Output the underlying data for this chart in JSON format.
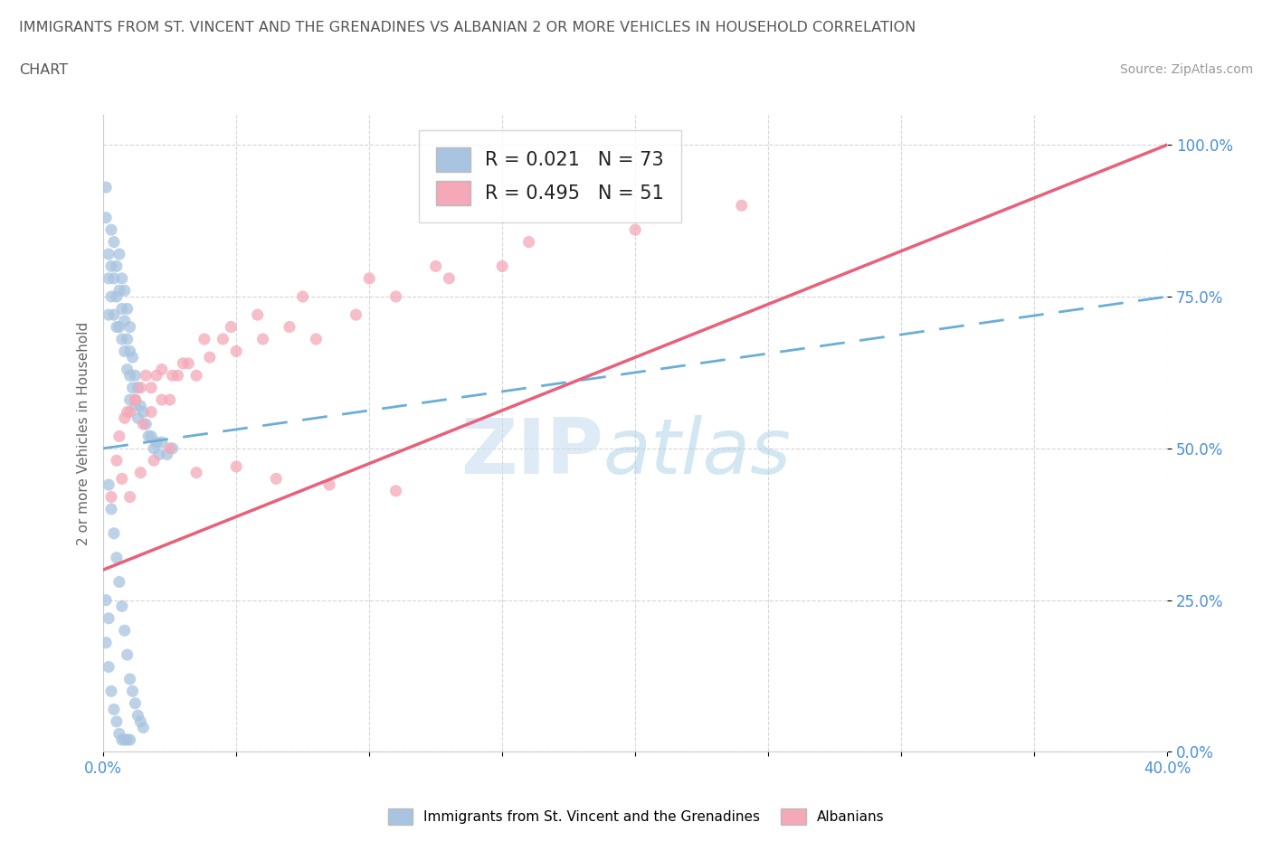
{
  "title_line1": "IMMIGRANTS FROM ST. VINCENT AND THE GRENADINES VS ALBANIAN 2 OR MORE VEHICLES IN HOUSEHOLD CORRELATION",
  "title_line2": "CHART",
  "source_text": "Source: ZipAtlas.com",
  "ylabel": "2 or more Vehicles in Household",
  "xlim": [
    0.0,
    0.4
  ],
  "ylim": [
    0.0,
    1.05
  ],
  "y_ticks": [
    0.0,
    0.25,
    0.5,
    0.75,
    1.0
  ],
  "y_tick_labels": [
    "0.0%",
    "25.0%",
    "50.0%",
    "75.0%",
    "100.0%"
  ],
  "x_tick_labels_show": [
    "0.0%",
    "40.0%"
  ],
  "blue_R": 0.021,
  "blue_N": 73,
  "pink_R": 0.495,
  "pink_N": 51,
  "blue_color": "#a8c4e0",
  "pink_color": "#f4a8b8",
  "blue_line_color": "#6aaed6",
  "pink_line_color": "#e8607a",
  "legend_label_blue": "Immigrants from St. Vincent and the Grenadines",
  "legend_label_pink": "Albanians",
  "watermark_zip": "ZIP",
  "watermark_atlas": "atlas",
  "blue_scatter_x": [
    0.001,
    0.001,
    0.002,
    0.002,
    0.002,
    0.003,
    0.003,
    0.003,
    0.004,
    0.004,
    0.004,
    0.005,
    0.005,
    0.005,
    0.006,
    0.006,
    0.006,
    0.007,
    0.007,
    0.007,
    0.008,
    0.008,
    0.008,
    0.009,
    0.009,
    0.009,
    0.01,
    0.01,
    0.01,
    0.01,
    0.011,
    0.011,
    0.012,
    0.012,
    0.013,
    0.013,
    0.014,
    0.015,
    0.016,
    0.017,
    0.018,
    0.019,
    0.02,
    0.021,
    0.022,
    0.024,
    0.026,
    0.002,
    0.003,
    0.004,
    0.005,
    0.006,
    0.007,
    0.008,
    0.009,
    0.01,
    0.011,
    0.012,
    0.013,
    0.014,
    0.015,
    0.001,
    0.002,
    0.003,
    0.004,
    0.005,
    0.006,
    0.007,
    0.008,
    0.009,
    0.01,
    0.001,
    0.002
  ],
  "blue_scatter_y": [
    0.93,
    0.88,
    0.82,
    0.78,
    0.72,
    0.86,
    0.8,
    0.75,
    0.84,
    0.78,
    0.72,
    0.8,
    0.75,
    0.7,
    0.82,
    0.76,
    0.7,
    0.78,
    0.73,
    0.68,
    0.76,
    0.71,
    0.66,
    0.73,
    0.68,
    0.63,
    0.7,
    0.66,
    0.62,
    0.58,
    0.65,
    0.6,
    0.62,
    0.57,
    0.6,
    0.55,
    0.57,
    0.56,
    0.54,
    0.52,
    0.52,
    0.5,
    0.51,
    0.49,
    0.51,
    0.49,
    0.5,
    0.44,
    0.4,
    0.36,
    0.32,
    0.28,
    0.24,
    0.2,
    0.16,
    0.12,
    0.1,
    0.08,
    0.06,
    0.05,
    0.04,
    0.18,
    0.14,
    0.1,
    0.07,
    0.05,
    0.03,
    0.02,
    0.02,
    0.02,
    0.02,
    0.25,
    0.22
  ],
  "pink_scatter_x": [
    0.003,
    0.005,
    0.008,
    0.01,
    0.012,
    0.014,
    0.016,
    0.018,
    0.02,
    0.022,
    0.025,
    0.028,
    0.03,
    0.035,
    0.04,
    0.045,
    0.05,
    0.06,
    0.07,
    0.08,
    0.095,
    0.11,
    0.13,
    0.15,
    0.2,
    0.24,
    0.006,
    0.009,
    0.012,
    0.015,
    0.018,
    0.022,
    0.026,
    0.032,
    0.038,
    0.048,
    0.058,
    0.075,
    0.1,
    0.125,
    0.16,
    0.007,
    0.01,
    0.014,
    0.019,
    0.025,
    0.035,
    0.05,
    0.065,
    0.085,
    0.11
  ],
  "pink_scatter_y": [
    0.42,
    0.48,
    0.55,
    0.56,
    0.58,
    0.6,
    0.62,
    0.6,
    0.62,
    0.63,
    0.58,
    0.62,
    0.64,
    0.62,
    0.65,
    0.68,
    0.66,
    0.68,
    0.7,
    0.68,
    0.72,
    0.75,
    0.78,
    0.8,
    0.86,
    0.9,
    0.52,
    0.56,
    0.58,
    0.54,
    0.56,
    0.58,
    0.62,
    0.64,
    0.68,
    0.7,
    0.72,
    0.75,
    0.78,
    0.8,
    0.84,
    0.45,
    0.42,
    0.46,
    0.48,
    0.5,
    0.46,
    0.47,
    0.45,
    0.44,
    0.43
  ],
  "blue_trend_x0": 0.0,
  "blue_trend_y0": 0.5,
  "blue_trend_x1": 0.4,
  "blue_trend_y1": 0.75,
  "pink_trend_x0": 0.0,
  "pink_trend_y0": 0.3,
  "pink_trend_x1": 0.4,
  "pink_trend_y1": 1.0
}
